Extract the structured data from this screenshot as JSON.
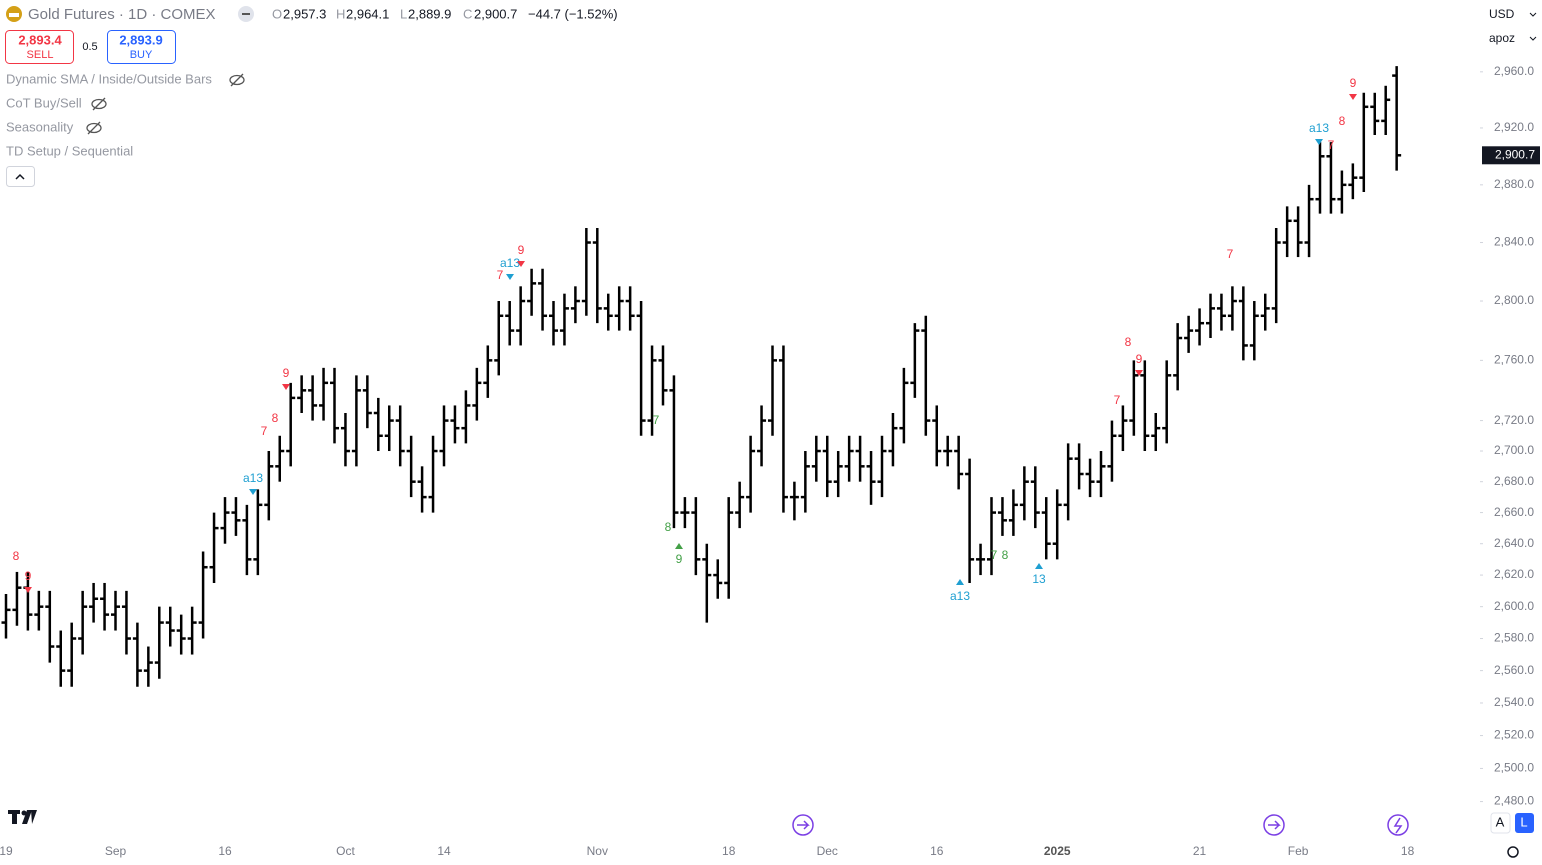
{
  "header": {
    "symbol": "Gold Futures · 1D · COMEX",
    "open_label": "O",
    "open": "2,957.3",
    "high_label": "H",
    "high": "2,964.1",
    "low_label": "L",
    "low": "2,889.9",
    "close_label": "C",
    "close": "2,900.7",
    "change": "−44.7 (−1.52%)"
  },
  "trade": {
    "sell_price": "2,893.4",
    "sell": "SELL",
    "spread": "0.5",
    "buy_price": "2,893.9",
    "buy": "BUY"
  },
  "indicators": [
    "Dynamic SMA / Inside/Outside Bars",
    "CoT Buy/Sell",
    "Seasonality",
    "TD Setup / Sequential"
  ],
  "currency": "USD",
  "unit": "apoz",
  "last_price": "2,900.7",
  "buttons": [
    "A",
    "L"
  ],
  "chart_data": {
    "type": "ohlc",
    "color": "#000000",
    "log_scale": true,
    "grid": false,
    "categories": [
      "19",
      null,
      null,
      null,
      null,
      null,
      null,
      null,
      null,
      null,
      "Sep",
      null,
      null,
      null,
      null,
      null,
      null,
      null,
      null,
      null,
      "16",
      null,
      null,
      null,
      null,
      null,
      null,
      null,
      null,
      null,
      null,
      "Oct",
      null,
      null,
      null,
      null,
      null,
      null,
      null,
      null,
      "14",
      null,
      null,
      null,
      null,
      null,
      null,
      null,
      null,
      null,
      null,
      null,
      null,
      null,
      "Nov",
      null,
      null,
      null,
      null,
      null,
      null,
      null,
      null,
      null,
      null,
      null,
      "18",
      null,
      null,
      null,
      null,
      null,
      null,
      null,
      null,
      "Dec",
      null,
      null,
      null,
      null,
      null,
      null,
      null,
      null,
      null,
      "16",
      null,
      null,
      null,
      null,
      null,
      null,
      null,
      null,
      null,
      null,
      "2025",
      null,
      null,
      null,
      null,
      null,
      null,
      null,
      null,
      null,
      null,
      null,
      null,
      "21",
      null,
      null,
      null,
      null,
      null,
      null,
      null,
      null,
      "Feb",
      null,
      null,
      null,
      null,
      null,
      null,
      null,
      null,
      null,
      "18"
    ],
    "open": [
      2590,
      2598,
      2612,
      2595,
      2600,
      2575,
      2560,
      2580,
      2600,
      2605,
      2595,
      2600,
      2580,
      2560,
      2565,
      2590,
      2585,
      2580,
      2590,
      2625,
      2650,
      2660,
      2655,
      2630,
      2665,
      2690,
      2700,
      2735,
      2740,
      2730,
      2745,
      2715,
      2700,
      2740,
      2725,
      2710,
      2720,
      2700,
      2680,
      2670,
      2700,
      2720,
      2715,
      2730,
      2745,
      2760,
      2790,
      2780,
      2800,
      2812,
      2790,
      2780,
      2795,
      2800,
      2840,
      2795,
      2790,
      2800,
      2790,
      2720,
      2760,
      2740,
      2660,
      2660,
      2630,
      2620,
      2615,
      2660,
      2670,
      2700,
      2720,
      2760,
      2670,
      2670,
      2690,
      2700,
      2680,
      2690,
      2700,
      2690,
      2680,
      2700,
      2715,
      2745,
      2780,
      2720,
      2700,
      2700,
      2685,
      2630,
      2630,
      2660,
      2655,
      2665,
      2680,
      2660,
      2640,
      2665,
      2695,
      2685,
      2680,
      2690,
      2710,
      2720,
      2750,
      2710,
      2715,
      2750,
      2775,
      2780,
      2785,
      2795,
      2790,
      2800,
      2770,
      2790,
      2795,
      2840,
      2855,
      2840,
      2870,
      2900,
      2870,
      2880,
      2885,
      2935,
      2925,
      2957.3,
      null
    ],
    "high": [
      2608,
      2622,
      2622,
      2610,
      2610,
      2585,
      2590,
      2610,
      2615,
      2615,
      2610,
      2610,
      2590,
      2575,
      2600,
      2600,
      2595,
      2600,
      2635,
      2660,
      2670,
      2670,
      2665,
      2675,
      2700,
      2710,
      2745,
      2750,
      2750,
      2755,
      2755,
      2725,
      2750,
      2750,
      2735,
      2730,
      2730,
      2710,
      2690,
      2710,
      2730,
      2730,
      2740,
      2755,
      2770,
      2800,
      2800,
      2810,
      2822,
      2822,
      2800,
      2805,
      2810,
      2850,
      2850,
      2805,
      2810,
      2810,
      2800,
      2770,
      2770,
      2750,
      2670,
      2670,
      2640,
      2630,
      2670,
      2680,
      2710,
      2730,
      2770,
      2770,
      2680,
      2700,
      2710,
      2710,
      2700,
      2710,
      2710,
      2700,
      2710,
      2725,
      2755,
      2785,
      2790,
      2730,
      2710,
      2710,
      2695,
      2640,
      2670,
      2670,
      2675,
      2690,
      2690,
      2670,
      2675,
      2705,
      2705,
      2695,
      2700,
      2720,
      2730,
      2760,
      2760,
      2725,
      2760,
      2785,
      2790,
      2795,
      2805,
      2805,
      2810,
      2810,
      2800,
      2805,
      2850,
      2865,
      2865,
      2880,
      2910,
      2910,
      2890,
      2895,
      2945,
      2945,
      2950,
      2964.1,
      null
    ],
    "low": [
      2580,
      2588,
      2585,
      2585,
      2565,
      2550,
      2550,
      2570,
      2590,
      2585,
      2585,
      2570,
      2550,
      2550,
      2555,
      2575,
      2570,
      2570,
      2580,
      2615,
      2640,
      2645,
      2620,
      2620,
      2655,
      2680,
      2690,
      2725,
      2720,
      2720,
      2705,
      2690,
      2690,
      2715,
      2700,
      2700,
      2690,
      2670,
      2660,
      2660,
      2690,
      2705,
      2705,
      2720,
      2735,
      2750,
      2770,
      2770,
      2790,
      2780,
      2770,
      2770,
      2785,
      2790,
      2785,
      2780,
      2780,
      2780,
      2710,
      2710,
      2730,
      2650,
      2650,
      2620,
      2590,
      2605,
      2605,
      2650,
      2660,
      2690,
      2710,
      2660,
      2655,
      2660,
      2680,
      2670,
      2670,
      2680,
      2680,
      2665,
      2670,
      2690,
      2705,
      2735,
      2710,
      2690,
      2690,
      2675,
      2615,
      2620,
      2620,
      2645,
      2645,
      2655,
      2650,
      2630,
      2630,
      2655,
      2675,
      2670,
      2670,
      2680,
      2700,
      2710,
      2700,
      2700,
      2705,
      2740,
      2765,
      2770,
      2775,
      2780,
      2780,
      2760,
      2760,
      2780,
      2785,
      2830,
      2830,
      2830,
      2860,
      2860,
      2860,
      2870,
      2875,
      2915,
      2915,
      2889.9,
      null
    ],
    "close": [
      2598,
      2612,
      2595,
      2600,
      2575,
      2560,
      2580,
      2600,
      2605,
      2595,
      2600,
      2580,
      2560,
      2565,
      2590,
      2585,
      2580,
      2590,
      2625,
      2650,
      2660,
      2655,
      2630,
      2665,
      2690,
      2700,
      2735,
      2740,
      2730,
      2745,
      2715,
      2700,
      2740,
      2725,
      2710,
      2720,
      2700,
      2680,
      2670,
      2700,
      2720,
      2715,
      2730,
      2745,
      2760,
      2790,
      2780,
      2800,
      2812,
      2790,
      2780,
      2795,
      2800,
      2840,
      2795,
      2790,
      2800,
      2790,
      2720,
      2760,
      2740,
      2660,
      2660,
      2630,
      2620,
      2615,
      2660,
      2670,
      2700,
      2720,
      2760,
      2670,
      2670,
      2690,
      2700,
      2680,
      2690,
      2700,
      2690,
      2680,
      2700,
      2715,
      2745,
      2780,
      2720,
      2700,
      2700,
      2685,
      2630,
      2630,
      2660,
      2655,
      2665,
      2680,
      2660,
      2640,
      2665,
      2695,
      2685,
      2680,
      2690,
      2710,
      2720,
      2750,
      2710,
      2715,
      2750,
      2775,
      2780,
      2785,
      2795,
      2790,
      2800,
      2770,
      2790,
      2795,
      2840,
      2855,
      2840,
      2870,
      2900,
      2870,
      2880,
      2885,
      2935,
      2925,
      2940,
      2900.7,
      null
    ],
    "ylim": [
      2457,
      3012
    ],
    "yticks": [
      {
        "value": 2480,
        "label": "2,480.0"
      },
      {
        "value": 2500,
        "label": "2,500.0"
      },
      {
        "value": 2520,
        "label": "2,520.0"
      },
      {
        "value": 2540,
        "label": "2,540.0"
      },
      {
        "value": 2560,
        "label": "2,560.0"
      },
      {
        "value": 2580,
        "label": "2,580.0"
      },
      {
        "value": 2600,
        "label": "2,600.0"
      },
      {
        "value": 2620,
        "label": "2,620.0"
      },
      {
        "value": 2640,
        "label": "2,640.0"
      },
      {
        "value": 2660,
        "label": "2,660.0"
      },
      {
        "value": 2680,
        "label": "2,680.0"
      },
      {
        "value": 2700,
        "label": "2,700.0"
      },
      {
        "value": 2720,
        "label": "2,720.0"
      },
      {
        "value": 2760,
        "label": "2,760.0"
      },
      {
        "value": 2800,
        "label": "2,800.0"
      },
      {
        "value": 2840,
        "label": "2,840.0"
      },
      {
        "value": 2880,
        "label": "2,880.0"
      },
      {
        "value": 2920,
        "label": "2,920.0"
      },
      {
        "value": 2960,
        "label": "2,960.0"
      }
    ],
    "annotations": [
      {
        "text": "9",
        "color": "#f23645"
      },
      {
        "text": "8",
        "color": "#f23645"
      },
      {
        "text": "a13",
        "color": "#1e9fd1"
      },
      {
        "text": "7",
        "color": "#f23645"
      },
      {
        "text": "8",
        "color": "#f23645"
      },
      {
        "text": "9",
        "color": "#f23645"
      },
      {
        "text": "7",
        "color": "#f23645"
      },
      {
        "text": "a13",
        "color": "#1e9fd1"
      },
      {
        "text": "9",
        "color": "#f23645"
      },
      {
        "text": "7",
        "color": "#43a047"
      },
      {
        "text": "8",
        "color": "#43a047"
      },
      {
        "text": "9",
        "color": "#43a047"
      },
      {
        "text": "a13",
        "color": "#1e9fd1"
      },
      {
        "text": "7",
        "color": "#43a047"
      },
      {
        "text": "8",
        "color": "#43a047"
      },
      {
        "text": "13",
        "color": "#1e9fd1"
      },
      {
        "text": "7",
        "color": "#f23645"
      },
      {
        "text": "8",
        "color": "#f23645"
      },
      {
        "text": "9",
        "color": "#f23645"
      },
      {
        "text": "7",
        "color": "#f23645"
      },
      {
        "text": "a13",
        "color": "#1e9fd1"
      },
      {
        "text": "7",
        "color": "#f23645"
      },
      {
        "text": "8",
        "color": "#f23645"
      },
      {
        "text": "9",
        "color": "#f23645"
      }
    ]
  }
}
